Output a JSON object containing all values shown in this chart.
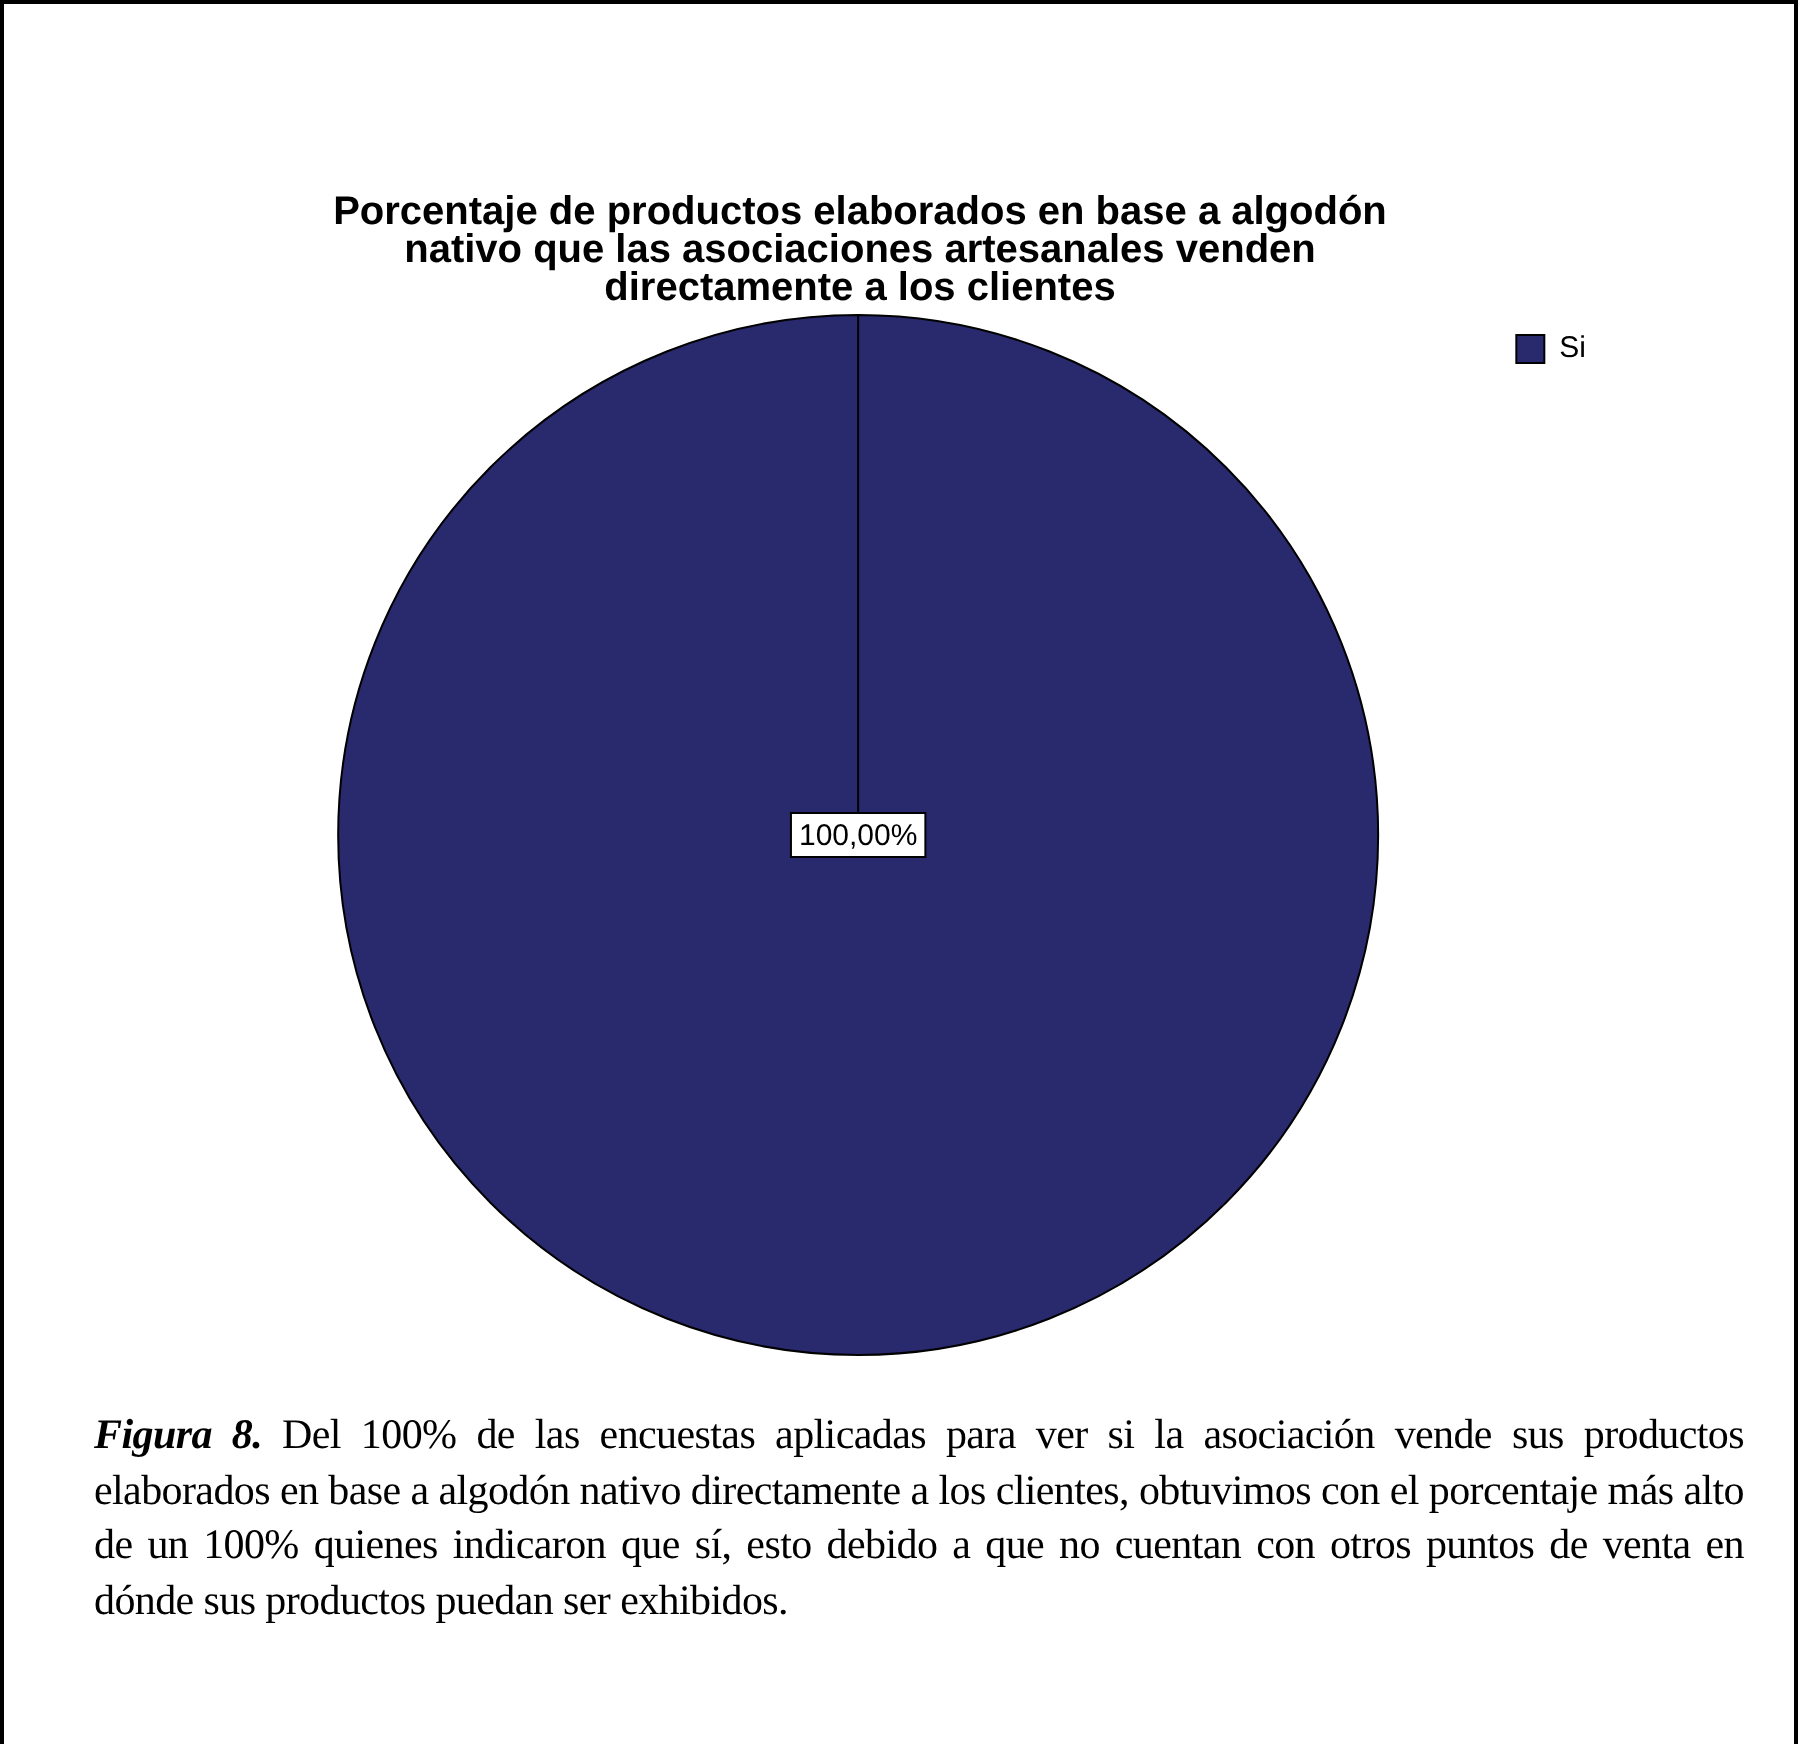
{
  "chart_data": {
    "type": "pie",
    "title": "Porcentaje de productos elaborados en base a algodón nativo que las asociaciones artesanales venden directamente a los clientes",
    "categories": [
      "Si"
    ],
    "values": [
      100
    ],
    "colors": [
      "#29296e"
    ],
    "value_labels": [
      "100,00%"
    ],
    "legend": "top right",
    "annotations": [
      "Figura 8. Del 100% de las encuestas aplicadas para ver si la asociación vende sus productos elaborados en base a algodón nativo directamente a los clientes, obtuvimos con el porcentaje más alto de un 100% quienes indicaron que sí, esto debido a que no cuentan con otros puntos de venta en dónde sus productos puedan ser exhibidos."
    ]
  }
}
